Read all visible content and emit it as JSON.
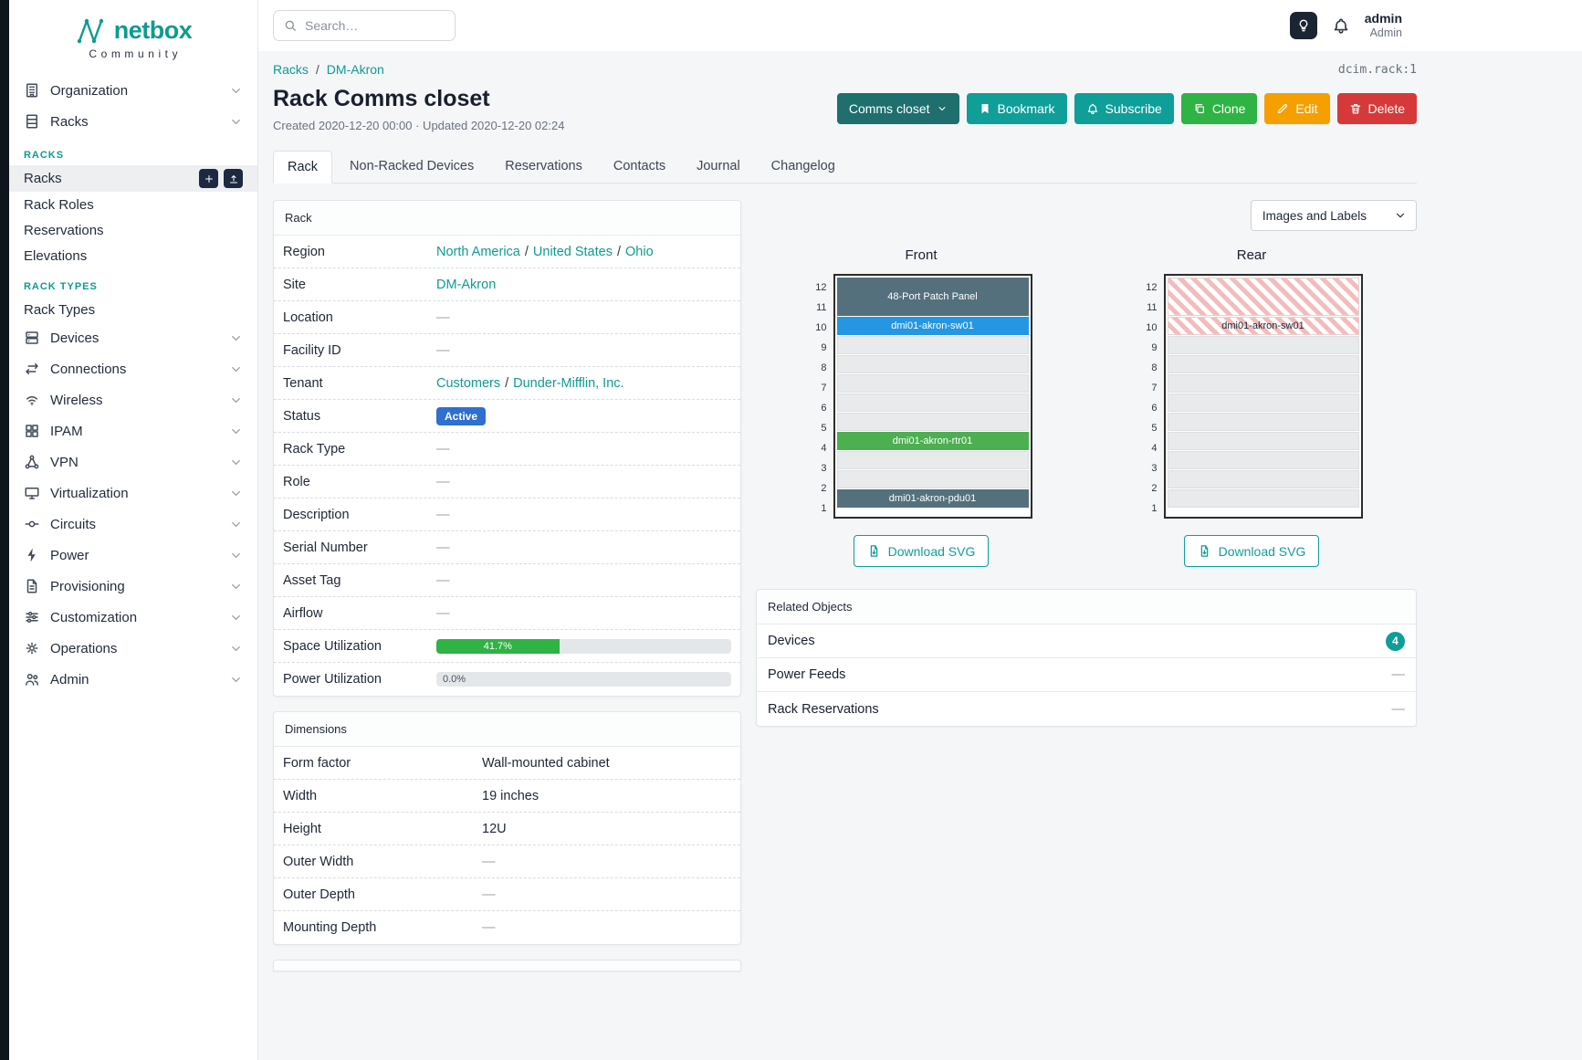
{
  "brand": {
    "name": "netbox",
    "tagline": "Community"
  },
  "topbar": {
    "search_placeholder": "Search…",
    "user_name": "admin",
    "user_role": "Admin"
  },
  "sidebar": {
    "top": [
      {
        "label": "Organization"
      },
      {
        "label": "Racks"
      }
    ],
    "group_racks": {
      "title": "RACKS",
      "items": [
        "Racks",
        "Rack Roles",
        "Reservations",
        "Elevations"
      ]
    },
    "group_rack_types": {
      "title": "RACK TYPES",
      "items": [
        "Rack Types"
      ]
    },
    "menu": [
      "Devices",
      "Connections",
      "Wireless",
      "IPAM",
      "VPN",
      "Virtualization",
      "Circuits",
      "Power",
      "Provisioning",
      "Customization",
      "Operations",
      "Admin"
    ]
  },
  "page": {
    "breadcrumb": [
      "Racks",
      "DM-Akron"
    ],
    "breadcrumb_sep": "/",
    "object_id": "dcim.rack:1",
    "title": "Rack Comms closet",
    "meta": "Created 2020-12-20 00:00 · Updated 2020-12-20 02:24",
    "buttons": {
      "context": "Comms closet",
      "bookmark": "Bookmark",
      "subscribe": "Subscribe",
      "clone": "Clone",
      "edit": "Edit",
      "delete": "Delete"
    },
    "tabs": [
      "Rack",
      "Non-Racked Devices",
      "Reservations",
      "Contacts",
      "Journal",
      "Changelog"
    ]
  },
  "rack_card": {
    "title": "Rack",
    "sep": "/",
    "region_label": "Region",
    "region_links": [
      "North America",
      "United States",
      "Ohio"
    ],
    "site_label": "Site",
    "site_value": "DM-Akron",
    "location_label": "Location",
    "location_value": "—",
    "facility_label": "Facility ID",
    "facility_value": "—",
    "tenant_label": "Tenant",
    "tenant_links": [
      "Customers",
      "Dunder-Mifflin, Inc."
    ],
    "status_label": "Status",
    "status_value": "Active",
    "rack_type_label": "Rack Type",
    "rack_type_value": "—",
    "role_label": "Role",
    "role_value": "—",
    "description_label": "Description",
    "description_value": "—",
    "serial_label": "Serial Number",
    "serial_value": "—",
    "asset_label": "Asset Tag",
    "asset_value": "—",
    "airflow_label": "Airflow",
    "airflow_value": "—",
    "space_label": "Space Utilization",
    "space_value": "41.7%",
    "space_pct": 41.7,
    "power_label": "Power Utilization",
    "power_value": "0.0%",
    "power_pct": 0
  },
  "dimensions_card": {
    "title": "Dimensions",
    "rows": [
      [
        "Form factor",
        "Wall-mounted cabinet"
      ],
      [
        "Width",
        "19 inches"
      ],
      [
        "Height",
        "12U"
      ],
      [
        "Outer Width",
        "—"
      ],
      [
        "Outer Depth",
        "—"
      ],
      [
        "Mounting Depth",
        "—"
      ]
    ]
  },
  "elevations": {
    "view_select": "Images and Labels",
    "units": [
      "12",
      "11",
      "10",
      "9",
      "8",
      "7",
      "6",
      "5",
      "4",
      "3",
      "2",
      "1"
    ],
    "front": {
      "title": "Front",
      "download": "Download SVG"
    },
    "rear": {
      "title": "Rear",
      "download": "Download SVG"
    },
    "devices": {
      "patch_panel": {
        "label": "48-Port Patch Panel",
        "color": "#54707d"
      },
      "switch": {
        "label": "dmi01-akron-sw01",
        "color": "#2596e3"
      },
      "router": {
        "label": "dmi01-akron-rtr01",
        "color": "#4caf50"
      },
      "pdu": {
        "label": "dmi01-akron-pdu01",
        "color": "#54707d"
      }
    }
  },
  "related_card": {
    "title": "Related Objects",
    "rows": [
      {
        "label": "Devices",
        "badge": "4"
      },
      {
        "label": "Power Feeds",
        "value": "—"
      },
      {
        "label": "Rack Reservations",
        "value": "—"
      }
    ]
  },
  "colors": {
    "brand_teal": "#0e9b8f",
    "button_teal": "#0f9e98",
    "button_dark_teal": "#1e6f6d",
    "button_green": "#2fb344",
    "button_orange": "#f59f00",
    "button_red": "#d63939",
    "status_active_blue": "#2e6fd0",
    "progress_green": "#2fb344"
  }
}
